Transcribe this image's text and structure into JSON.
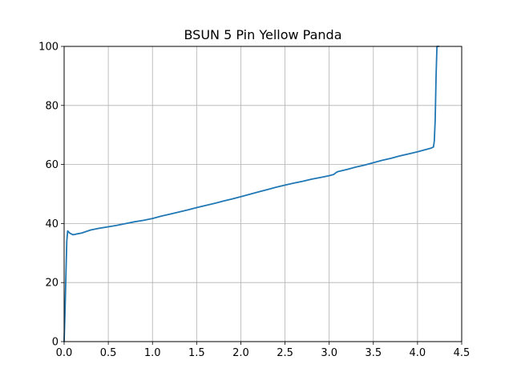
{
  "chart_data": {
    "type": "line",
    "title": "BSUN 5 Pin Yellow Panda",
    "xlabel": "",
    "ylabel": "",
    "xlim": [
      0,
      4.5
    ],
    "ylim": [
      0,
      100
    ],
    "xticks": [
      0.0,
      0.5,
      1.0,
      1.5,
      2.0,
      2.5,
      3.0,
      3.5,
      4.0,
      4.5
    ],
    "yticks": [
      0,
      20,
      40,
      60,
      80,
      100
    ],
    "xtick_labels": [
      "0.0",
      "0.5",
      "1.0",
      "1.5",
      "2.0",
      "2.5",
      "3.0",
      "3.5",
      "4.0",
      "4.5"
    ],
    "ytick_labels": [
      "0",
      "20",
      "40",
      "60",
      "80",
      "100"
    ],
    "grid": true,
    "line_color": "#1f77b4",
    "series": [
      {
        "x": [
          0.0,
          0.01,
          0.02,
          0.03,
          0.04,
          0.05,
          0.06,
          0.08,
          0.1,
          0.12,
          0.15,
          0.2,
          0.25,
          0.3,
          0.4,
          0.5,
          0.6,
          0.7,
          0.8,
          0.9,
          1.0,
          1.1,
          1.2,
          1.3,
          1.4,
          1.5,
          1.6,
          1.7,
          1.8,
          1.9,
          2.0,
          2.1,
          2.2,
          2.3,
          2.4,
          2.5,
          2.6,
          2.7,
          2.8,
          2.9,
          3.0,
          3.05,
          3.08,
          3.1,
          3.2,
          3.3,
          3.4,
          3.5,
          3.6,
          3.7,
          3.8,
          3.9,
          4.0,
          4.1,
          4.15,
          4.18,
          4.19,
          4.2,
          4.21,
          4.22,
          4.23,
          4.24
        ],
        "y": [
          0,
          10,
          22,
          34,
          37.5,
          37.2,
          36.8,
          36.5,
          36.2,
          36.3,
          36.5,
          36.8,
          37.3,
          37.8,
          38.4,
          38.9,
          39.4,
          40,
          40.6,
          41.1,
          41.7,
          42.5,
          43.2,
          43.9,
          44.6,
          45.4,
          46.1,
          46.8,
          47.6,
          48.3,
          49.1,
          49.9,
          50.7,
          51.5,
          52.3,
          53,
          53.7,
          54.3,
          55,
          55.6,
          56.2,
          56.6,
          57.3,
          57.6,
          58.3,
          59.1,
          59.8,
          60.6,
          61.4,
          62.1,
          62.9,
          63.6,
          64.3,
          65.1,
          65.5,
          65.9,
          68,
          75,
          90,
          100,
          100,
          100
        ]
      }
    ]
  }
}
